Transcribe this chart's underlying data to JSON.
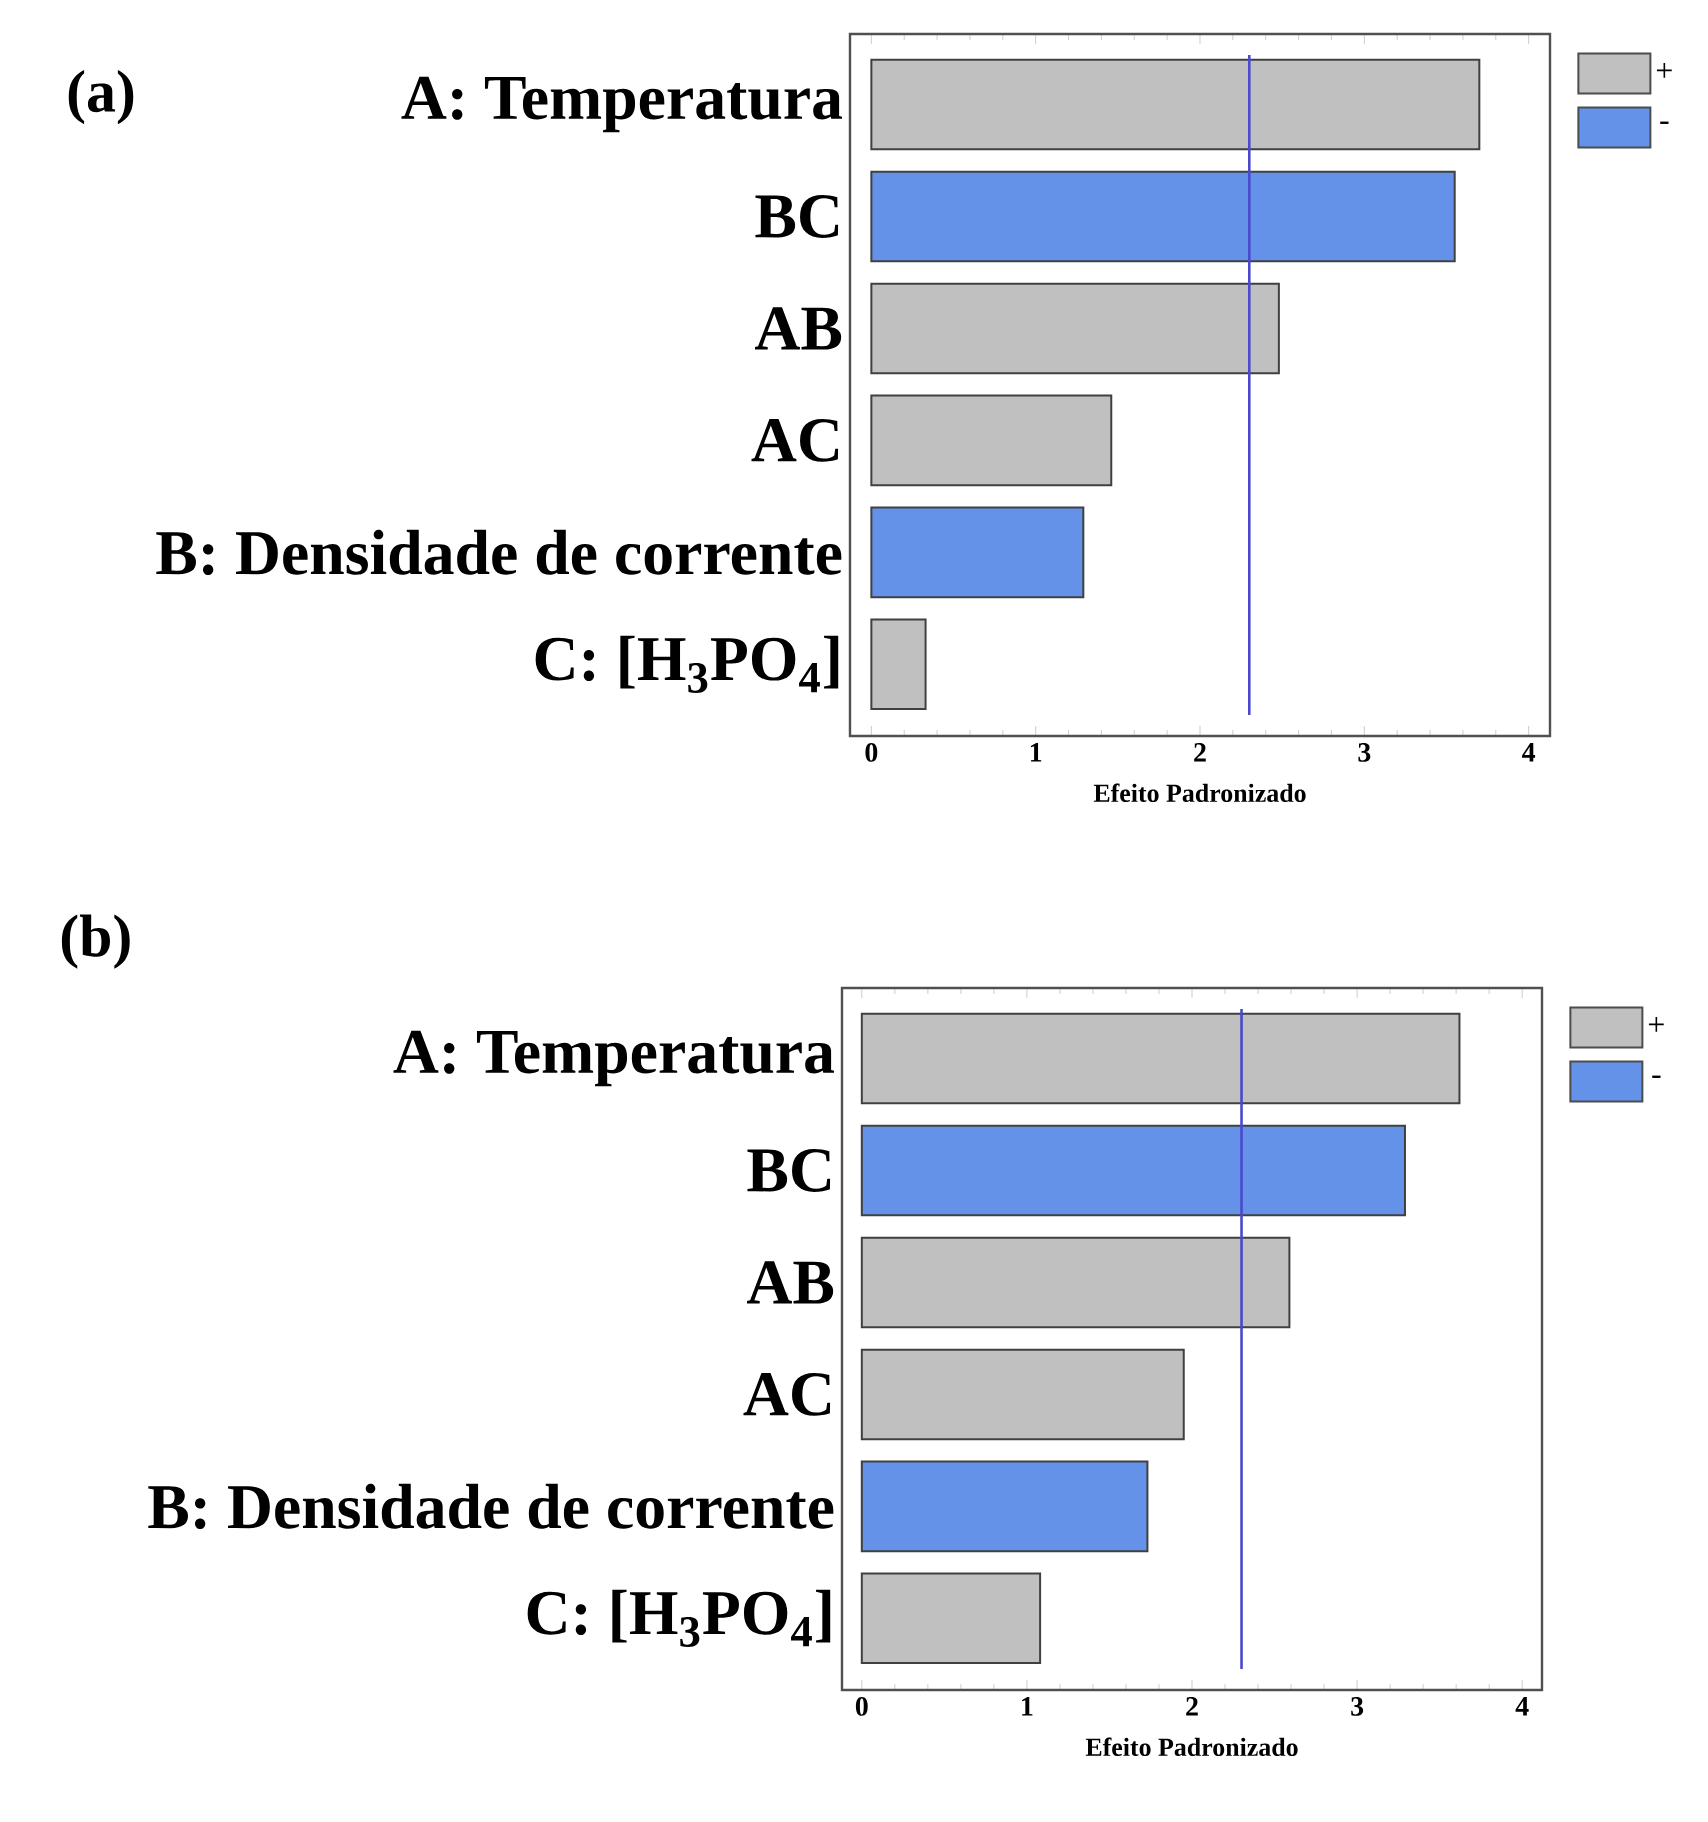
{
  "chart_data": [
    {
      "type": "bar",
      "orientation": "horizontal",
      "categories": [
        "A: Temperatura",
        "BC",
        "AB",
        "AC",
        "B: Densidade de corrente",
        "C: [H$_{3}$PO$_{4}$]"
      ],
      "series": [
        {
          "name": "+",
          "color": "#c0c0c0",
          "values": [
            3.7,
            null,
            2.48,
            1.46,
            null,
            0.33
          ]
        },
        {
          "name": "-",
          "color": "#6392e8",
          "values": [
            null,
            3.55,
            null,
            null,
            1.29,
            null
          ]
        }
      ],
      "xlim": [
        -0.13,
        4.13
      ],
      "xticks": [
        0,
        1,
        2,
        3,
        4
      ],
      "xlabel": "Efeito Padronizado",
      "ref_lines": [
        {
          "axis": "x",
          "value": 2.3,
          "color": "#4a4acc"
        }
      ],
      "legend": "top right",
      "annotations": [
        "(a)"
      ]
    },
    {
      "type": "bar",
      "orientation": "horizontal",
      "categories": [
        "A: Temperatura",
        "BC",
        "AB",
        "AC",
        "B: Densidade de corrente",
        "C: [H$_{3}$PO$_{4}$]"
      ],
      "series": [
        {
          "name": "+",
          "color": "#c0c0c0",
          "values": [
            3.62,
            null,
            2.59,
            1.95,
            null,
            1.08
          ]
        },
        {
          "name": "-",
          "color": "#6392e8",
          "values": [
            null,
            3.29,
            null,
            null,
            1.73,
            null
          ]
        }
      ],
      "xlim": [
        -0.12,
        4.12
      ],
      "xticks": [
        0,
        1,
        2,
        3,
        4
      ],
      "xlabel": "Efeito Padronizado",
      "ref_lines": [
        {
          "axis": "x",
          "value": 2.3,
          "color": "#4a4acc"
        }
      ],
      "legend": "top right",
      "annotations": [
        "(b)"
      ]
    }
  ]
}
